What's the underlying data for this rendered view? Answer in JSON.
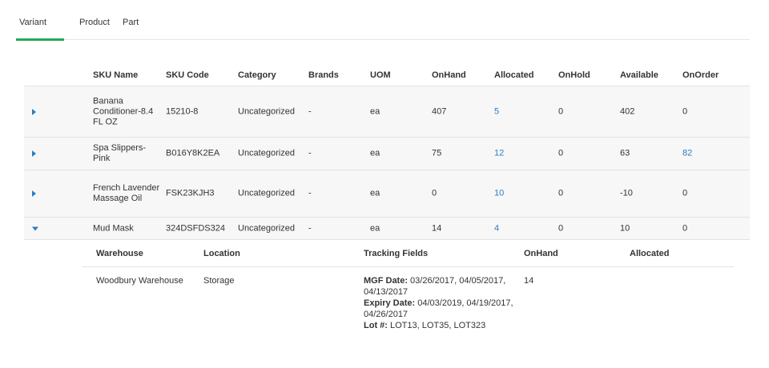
{
  "tabs": [
    {
      "label": "Variant",
      "active": true
    },
    {
      "label": "Product",
      "active": false
    },
    {
      "label": "Part",
      "active": false
    }
  ],
  "table": {
    "columns": [
      "SKU Name",
      "SKU Code",
      "Category",
      "Brands",
      "UOM",
      "OnHand",
      "Allocated",
      "OnHold",
      "Available",
      "OnOrder"
    ],
    "rows": [
      {
        "name": "Banana Conditioner-8.4 FL OZ",
        "code": "15210-8",
        "category": "Uncategorized",
        "brands": "-",
        "uom": "ea",
        "onhand": "407",
        "allocated": "5",
        "onhold": "0",
        "available": "402",
        "onorder": "0",
        "expanded": false
      },
      {
        "name": "Spa Slippers-Pink",
        "code": "B016Y8K2EA",
        "category": "Uncategorized",
        "brands": "-",
        "uom": "ea",
        "onhand": "75",
        "allocated": "12",
        "onhold": "0",
        "available": "63",
        "onorder": "82",
        "expanded": false
      },
      {
        "name": "French Lavender Massage Oil",
        "code": "FSK23KJH3",
        "category": "Uncategorized",
        "brands": "-",
        "uom": "ea",
        "onhand": "0",
        "allocated": "10",
        "onhold": "0",
        "available": "-10",
        "onorder": "0",
        "expanded": false
      },
      {
        "name": "Mud Mask",
        "code": "324DSFDS324",
        "category": "Uncategorized",
        "brands": "-",
        "uom": "ea",
        "onhand": "14",
        "allocated": "4",
        "onhold": "0",
        "available": "10",
        "onorder": "0",
        "expanded": true
      }
    ]
  },
  "detail": {
    "columns": [
      "Warehouse",
      "Location",
      "Tracking Fields",
      "OnHand",
      "Allocated"
    ],
    "row": {
      "warehouse": "Woodbury Warehouse",
      "location": "Storage",
      "tracking": {
        "mgf_label": "MGF Date:",
        "mgf_value": " 03/26/2017, 04/05/2017, 04/13/2017",
        "expiry_label": "Expiry Date:",
        "expiry_value": " 04/03/2019, 04/19/2017, 04/26/2017",
        "lot_label": "Lot #:",
        "lot_value": " LOT13, LOT35, LOT323"
      },
      "onhand": "14",
      "allocated": ""
    }
  },
  "colors": {
    "accent": "#27a85a",
    "link": "#2e7bc4",
    "row_bg": "#f7f7f7"
  }
}
